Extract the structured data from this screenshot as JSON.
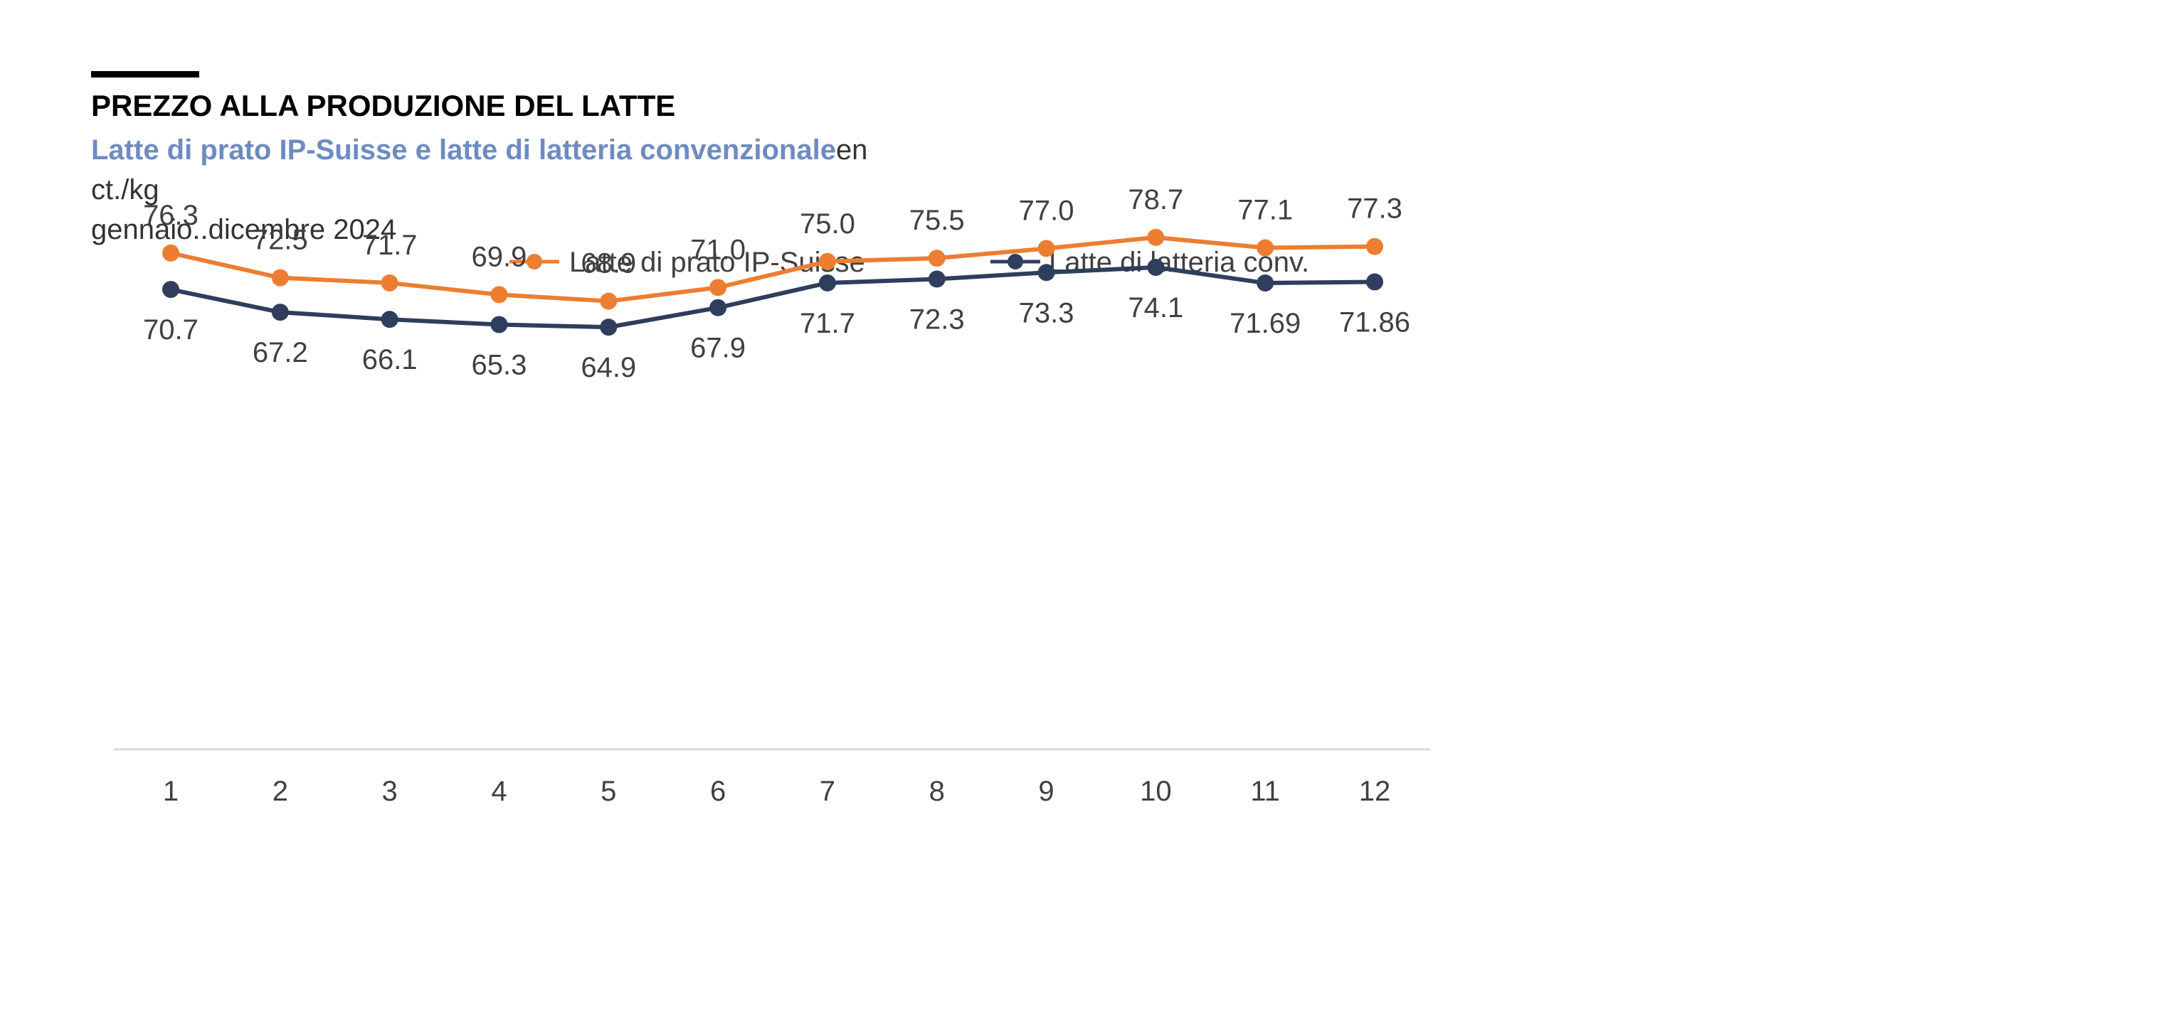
{
  "header": {
    "title": "PREZZO ALLA PRODUZIONE DEL LATTE",
    "subtitle_accent": "Latte di prato IP-Suisse e latte di latteria convenzionale",
    "subtitle_suffix": "en",
    "units": "ct./kg",
    "period": "gennaio..dicembre 2024"
  },
  "chart_data": {
    "type": "line",
    "title": "PREZZO ALLA PRODUZIONE DEL LATTE",
    "subtitle": "Latte di prato IP-Suisse e latte di latteria convenzionale",
    "xlabel": "",
    "ylabel": "",
    "categories": [
      "1",
      "2",
      "3",
      "4",
      "5",
      "6",
      "7",
      "8",
      "9",
      "10",
      "11",
      "12"
    ],
    "series": [
      {
        "name": "Latte di prato IP-Suisse",
        "color": "#ED7D31",
        "values": [
          76.3,
          72.5,
          71.7,
          69.9,
          68.9,
          71.0,
          75.0,
          75.5,
          77.0,
          78.7,
          77.1,
          77.3
        ],
        "labels": [
          "76.3",
          "72.5",
          "71.7",
          "69.9",
          "68.9",
          "71.0",
          "75.0",
          "75.5",
          "77.0",
          "78.7",
          "77.1",
          "77.3"
        ],
        "label_position": "above"
      },
      {
        "name": "Latte di latteria conv.",
        "color": "#2F3E5C",
        "values": [
          70.7,
          67.2,
          66.1,
          65.3,
          64.9,
          67.9,
          71.7,
          72.3,
          73.3,
          74.1,
          71.69,
          71.86
        ],
        "labels": [
          "70.7",
          "67.2",
          "66.1",
          "65.3",
          "64.9",
          "67.9",
          "71.7",
          "72.3",
          "73.3",
          "74.1",
          "71.69",
          "71.86"
        ],
        "label_position": "below"
      }
    ],
    "ylim": [
      0,
      100
    ],
    "grid": false,
    "legend": "top-center",
    "axis_color": "#D9D9D9"
  }
}
